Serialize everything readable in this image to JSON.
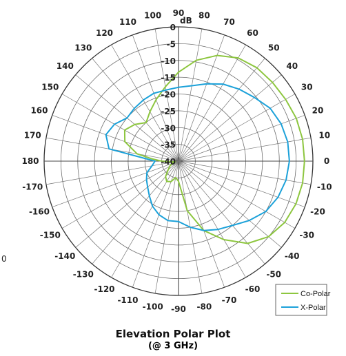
{
  "chart_data": {
    "type": "polar",
    "title": "Elevation Polar Plot",
    "subtitle": "(@ 3 GHz)",
    "angle_ticks": [
      0,
      10,
      20,
      30,
      40,
      50,
      60,
      70,
      80,
      90,
      100,
      110,
      120,
      130,
      140,
      150,
      160,
      170,
      180,
      -170,
      -160,
      -150,
      -140,
      -130,
      -120,
      -110,
      -100,
      -90,
      -80,
      -70,
      -60,
      -50,
      -40,
      -30,
      -20,
      -10
    ],
    "radial_ticks": [
      0,
      -5,
      -10,
      -15,
      -20,
      -25,
      -30,
      -35,
      -40
    ],
    "radial_range": [
      -40,
      0
    ],
    "radial_unit_marker": "dB",
    "legend_position": "bottom-right",
    "stray_label": "0",
    "series": [
      {
        "name": "Co-Polar",
        "color": "#8dc63f",
        "angles": [
          0,
          10,
          20,
          30,
          40,
          50,
          60,
          70,
          80,
          90,
          100,
          110,
          120,
          130,
          140,
          150,
          160,
          170,
          175,
          180,
          185,
          190,
          200,
          210,
          220,
          230,
          240,
          250,
          260,
          270,
          280,
          290,
          300,
          310,
          320,
          330,
          340,
          350
        ],
        "values": [
          -2.5,
          -2.5,
          -2.7,
          -3.2,
          -3.5,
          -3.7,
          -4.5,
          -6.5,
          -9.5,
          -13.5,
          -17.5,
          -20.5,
          -23,
          -25,
          -23,
          -21.5,
          -23,
          -27.5,
          -32,
          -35,
          -38,
          -39,
          -38,
          -37,
          -36,
          -34,
          -33,
          -33.5,
          -35,
          -34,
          -25,
          -18,
          -13,
          -8,
          -5,
          -3.5,
          -2.8,
          -2.5
        ]
      },
      {
        "name": "X-Polar",
        "color": "#1ba1d9",
        "angles": [
          0,
          10,
          20,
          30,
          40,
          50,
          60,
          70,
          80,
          90,
          100,
          110,
          120,
          130,
          140,
          150,
          160,
          170,
          180,
          190,
          200,
          210,
          220,
          230,
          240,
          250,
          260,
          270,
          280,
          290,
          300,
          310,
          320,
          330,
          340,
          350
        ],
        "values": [
          -7,
          -7,
          -7.5,
          -8.5,
          -10.5,
          -12,
          -13.5,
          -15.5,
          -17.2,
          -18,
          -18.5,
          -18.5,
          -19,
          -19.5,
          -20,
          -18,
          -17,
          -19,
          -33,
          -32,
          -30,
          -29,
          -28,
          -26.5,
          -24.5,
          -23,
          -22,
          -22,
          -20,
          -18,
          -16.5,
          -15,
          -12.5,
          -10,
          -8.5,
          -7.5
        ]
      }
    ]
  }
}
